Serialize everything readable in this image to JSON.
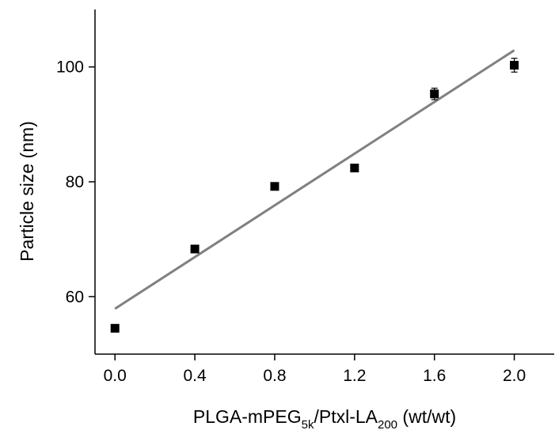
{
  "chart_data": {
    "type": "scatter",
    "title": "",
    "xlabel": {
      "parts": [
        {
          "text": "PLGA-mPEG",
          "sub": false
        },
        {
          "text": "5k",
          "sub": true
        },
        {
          "text": "/Ptxl-LA",
          "sub": false
        },
        {
          "text": "200",
          "sub": true
        },
        {
          "text": " (wt/wt)",
          "sub": false
        }
      ]
    },
    "ylabel": "Particle size (nm)",
    "xlim": [
      -0.1,
      2.2
    ],
    "ylim": [
      50,
      110
    ],
    "xticks": [
      0.0,
      0.4,
      0.8,
      1.2,
      1.6,
      2.0
    ],
    "xtick_labels": [
      "0.0",
      "0.4",
      "0.8",
      "1.2",
      "1.6",
      "2.0"
    ],
    "yticks": [
      60,
      80,
      100
    ],
    "ytick_labels": [
      "60",
      "80",
      "100"
    ],
    "grid": false,
    "series": [
      {
        "marker": "square",
        "color": "#000000",
        "x": [
          0.0,
          0.4,
          0.8,
          1.2,
          1.6,
          2.0
        ],
        "y": [
          54.5,
          68.3,
          79.2,
          82.4,
          95.3,
          100.3
        ],
        "yerr": [
          0.4,
          0.4,
          0.4,
          0.4,
          1.0,
          1.2
        ]
      }
    ],
    "fit_line": {
      "color": "#808080",
      "x": [
        0.0,
        2.0
      ],
      "y": [
        57.9,
        102.9
      ]
    }
  }
}
